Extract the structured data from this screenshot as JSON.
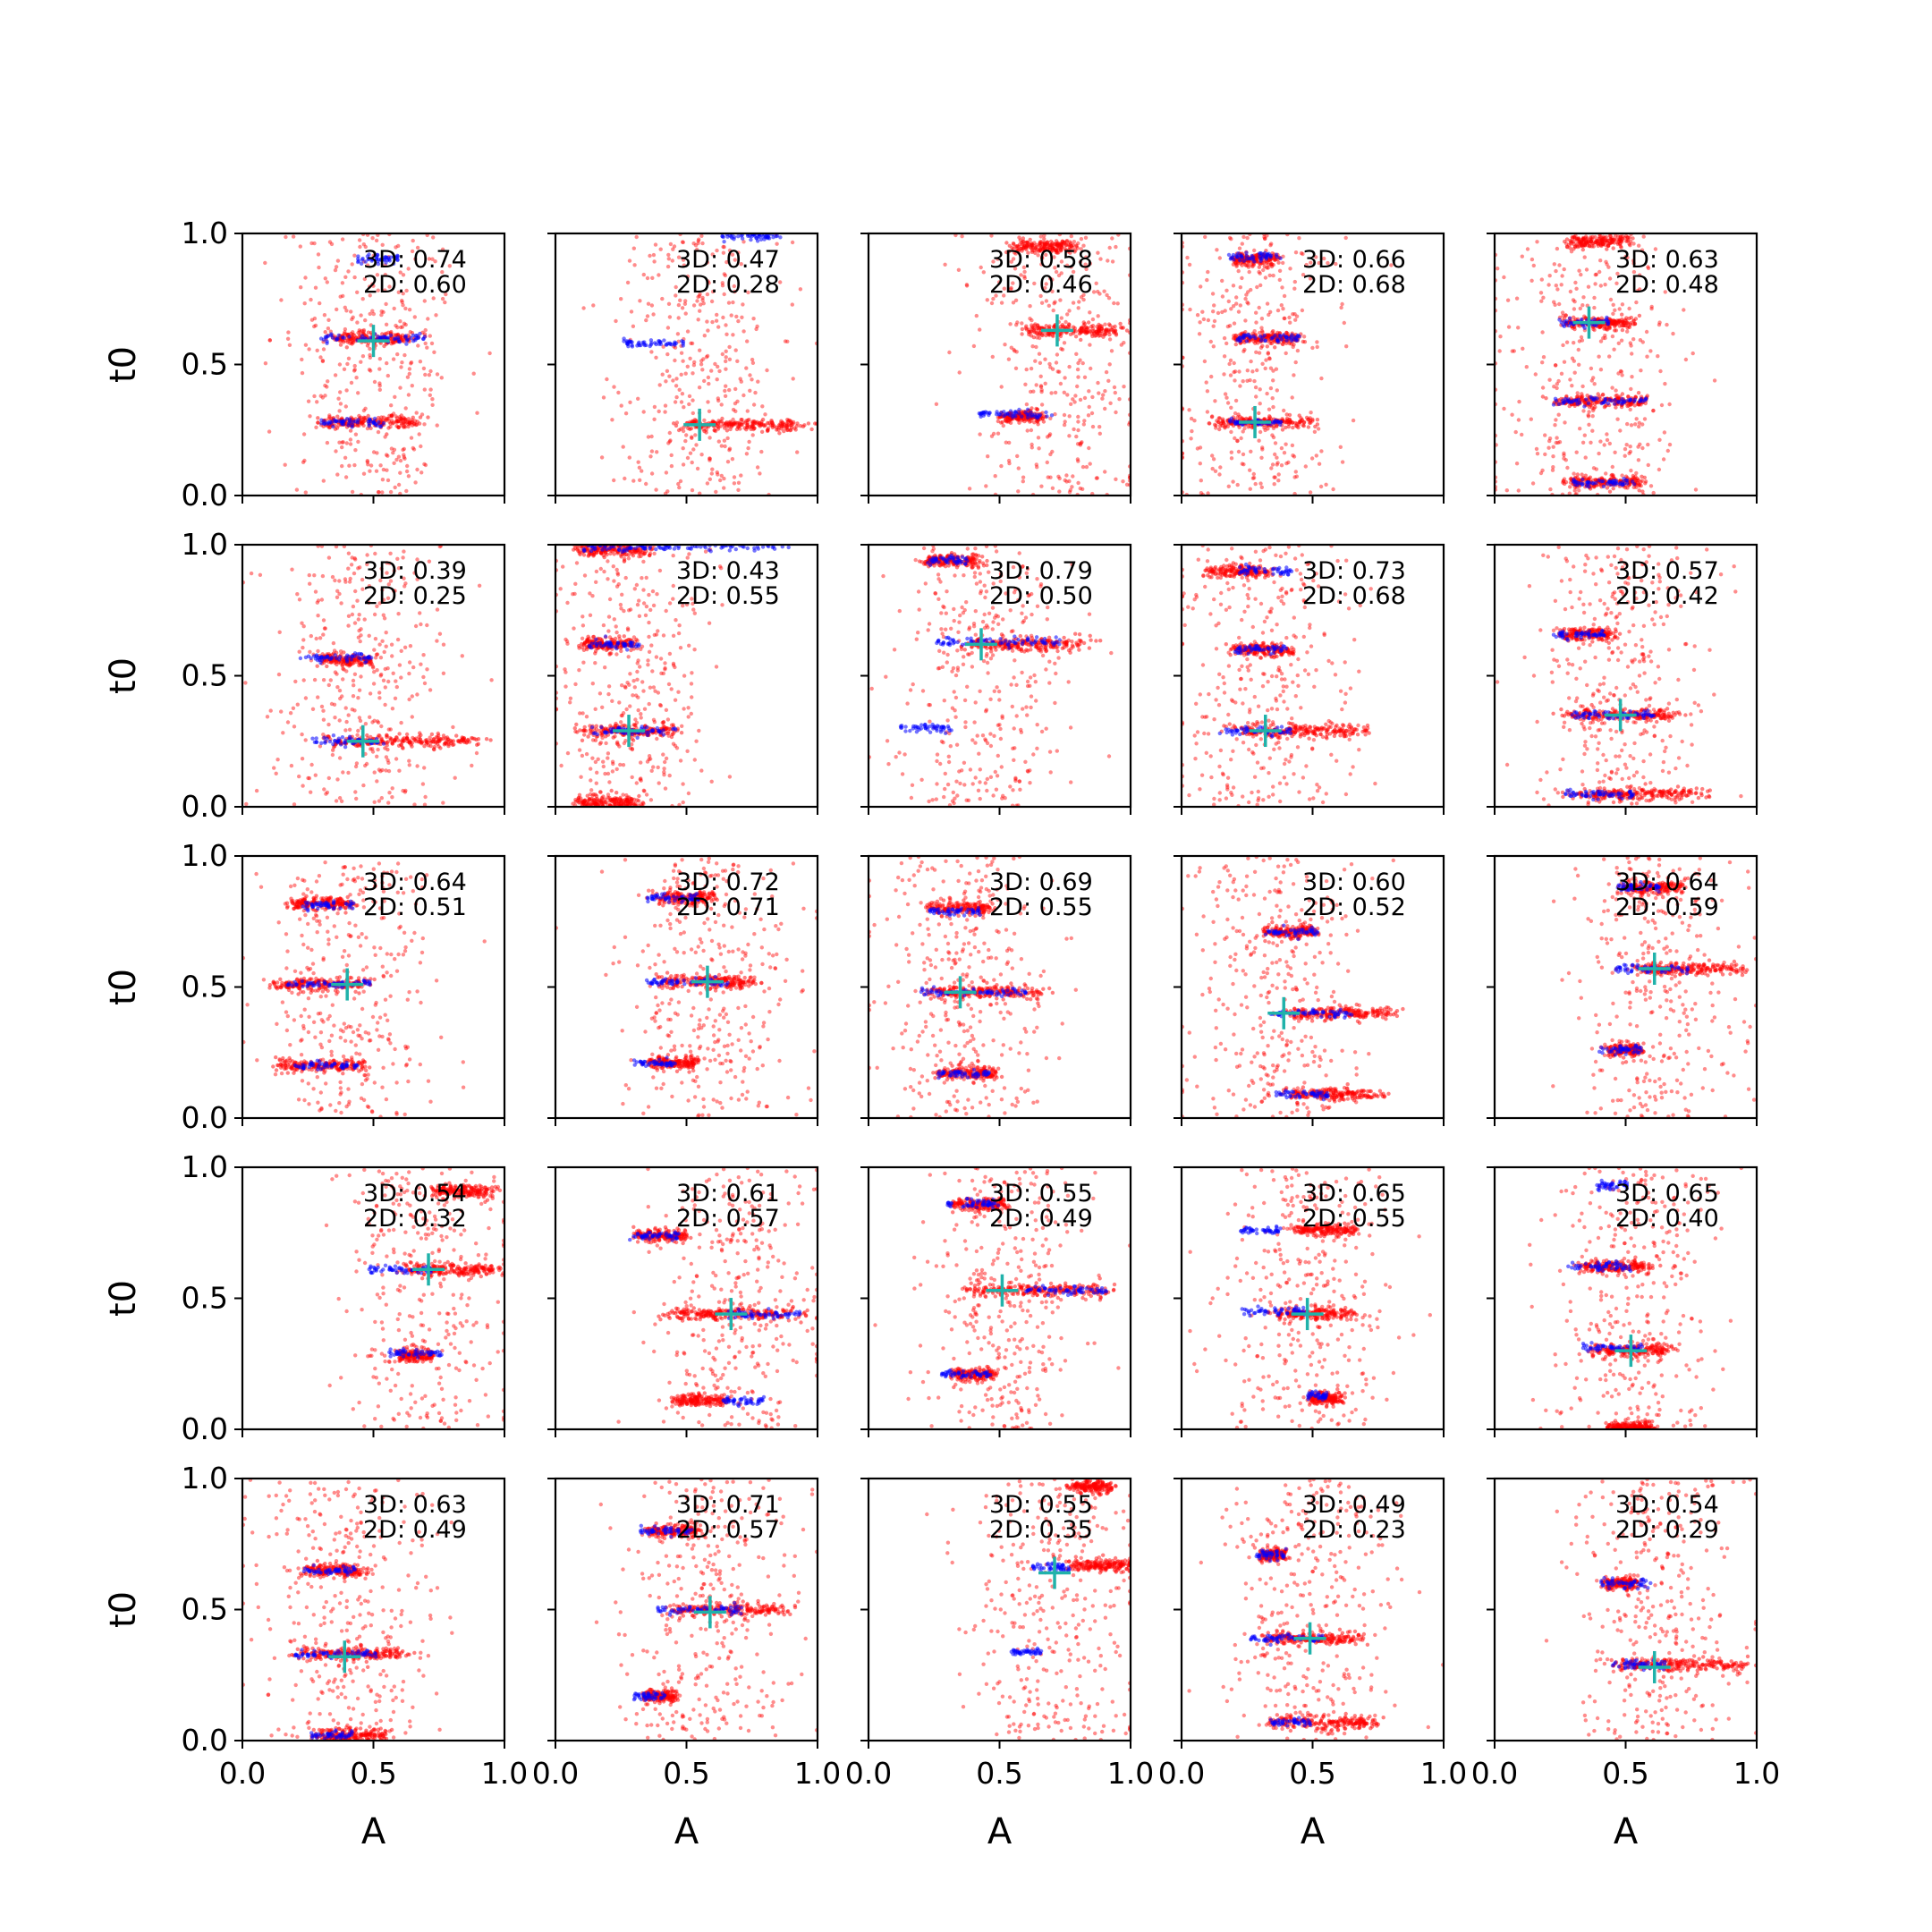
{
  "chart_data": {
    "type": "scatter",
    "grid": false,
    "layout": {
      "rows": 5,
      "cols": 5
    },
    "xlabel": "A",
    "ylabel": "t0",
    "xlim": [
      0,
      1
    ],
    "ylim": [
      0,
      1
    ],
    "xticks": [
      "0.0",
      "0.5",
      "1.0"
    ],
    "yticks": [
      "0.0",
      "0.5",
      "1.0"
    ],
    "colors": {
      "red_points": "#ff0000",
      "blue_points": "#0000ff",
      "marker": "#20b2aa",
      "axes": "#000000"
    },
    "panels": [
      {
        "label3d": "3D: 0.74",
        "label2d": "2D: 0.60",
        "marker": [
          0.5,
          0.59
        ],
        "bands": [
          [
            0.6,
            0.5,
            0.2
          ],
          [
            0.28,
            0.5,
            0.22
          ]
        ],
        "blue": [
          [
            0.9,
            0.52,
            0.08
          ],
          [
            0.6,
            0.5,
            0.2
          ],
          [
            0.28,
            0.42,
            0.12
          ]
        ]
      },
      {
        "label3d": "3D: 0.47",
        "label2d": "2D: 0.28",
        "marker": [
          0.55,
          0.27
        ],
        "bands": [
          [
            0.27,
            0.72,
            0.3
          ]
        ],
        "blue": [
          [
            0.58,
            0.38,
            0.12
          ],
          [
            0.99,
            0.75,
            0.12
          ]
        ]
      },
      {
        "label3d": "3D: 0.58",
        "label2d": "2D: 0.46",
        "marker": [
          0.72,
          0.63
        ],
        "bands": [
          [
            0.63,
            0.78,
            0.22
          ],
          [
            0.95,
            0.66,
            0.14
          ],
          [
            0.3,
            0.58,
            0.1
          ]
        ],
        "blue": [
          [
            0.31,
            0.56,
            0.14
          ]
        ]
      },
      {
        "label3d": "3D: 0.66",
        "label2d": "2D: 0.68",
        "marker": [
          0.28,
          0.28
        ],
        "bands": [
          [
            0.28,
            0.32,
            0.22
          ],
          [
            0.6,
            0.33,
            0.15
          ],
          [
            0.9,
            0.28,
            0.1
          ]
        ],
        "blue": [
          [
            0.91,
            0.28,
            0.1
          ],
          [
            0.6,
            0.33,
            0.12
          ],
          [
            0.28,
            0.28,
            0.1
          ]
        ]
      },
      {
        "label3d": "3D: 0.63",
        "label2d": "2D: 0.48",
        "marker": [
          0.36,
          0.66
        ],
        "bands": [
          [
            0.66,
            0.4,
            0.16
          ],
          [
            0.36,
            0.4,
            0.22
          ],
          [
            0.05,
            0.42,
            0.18
          ],
          [
            0.97,
            0.4,
            0.14
          ]
        ],
        "blue": [
          [
            0.36,
            0.4,
            0.18
          ],
          [
            0.05,
            0.42,
            0.12
          ],
          [
            0.66,
            0.34,
            0.1
          ]
        ]
      },
      {
        "label3d": "3D: 0.39",
        "label2d": "2D: 0.25",
        "marker": [
          0.46,
          0.25
        ],
        "bands": [
          [
            0.25,
            0.62,
            0.34
          ],
          [
            0.56,
            0.4,
            0.12
          ]
        ],
        "blue": [
          [
            0.57,
            0.36,
            0.14
          ],
          [
            0.25,
            0.4,
            0.14
          ]
        ]
      },
      {
        "label3d": "3D: 0.43",
        "label2d": "2D: 0.55",
        "marker": [
          0.28,
          0.29
        ],
        "bands": [
          [
            0.29,
            0.28,
            0.22
          ],
          [
            0.62,
            0.2,
            0.12
          ],
          [
            0.98,
            0.22,
            0.16
          ],
          [
            0.02,
            0.2,
            0.14
          ]
        ],
        "blue": [
          [
            0.29,
            0.3,
            0.16
          ],
          [
            0.99,
            0.5,
            0.4
          ],
          [
            0.62,
            0.22,
            0.1
          ]
        ]
      },
      {
        "label3d": "3D: 0.79",
        "label2d": "2D: 0.50",
        "marker": [
          0.43,
          0.62
        ],
        "bands": [
          [
            0.62,
            0.62,
            0.28
          ],
          [
            0.94,
            0.32,
            0.14
          ]
        ],
        "blue": [
          [
            0.63,
            0.5,
            0.24
          ],
          [
            0.3,
            0.22,
            0.1
          ],
          [
            0.94,
            0.3,
            0.08
          ]
        ]
      },
      {
        "label3d": "3D: 0.73",
        "label2d": "2D: 0.68",
        "marker": [
          0.32,
          0.29
        ],
        "bands": [
          [
            0.29,
            0.45,
            0.3
          ],
          [
            0.6,
            0.3,
            0.14
          ],
          [
            0.9,
            0.22,
            0.14
          ]
        ],
        "blue": [
          [
            0.9,
            0.32,
            0.1
          ],
          [
            0.6,
            0.3,
            0.1
          ],
          [
            0.29,
            0.28,
            0.14
          ]
        ]
      },
      {
        "label3d": "3D: 0.57",
        "label2d": "2D: 0.42",
        "marker": [
          0.48,
          0.35
        ],
        "bands": [
          [
            0.35,
            0.48,
            0.26
          ],
          [
            0.05,
            0.55,
            0.3
          ],
          [
            0.66,
            0.36,
            0.12
          ]
        ],
        "blue": [
          [
            0.66,
            0.32,
            0.1
          ],
          [
            0.35,
            0.45,
            0.16
          ],
          [
            0.05,
            0.4,
            0.14
          ]
        ]
      },
      {
        "label3d": "3D: 0.64",
        "label2d": "2D: 0.51",
        "marker": [
          0.4,
          0.51
        ],
        "bands": [
          [
            0.51,
            0.3,
            0.22
          ],
          [
            0.2,
            0.3,
            0.2
          ],
          [
            0.82,
            0.3,
            0.14
          ]
        ],
        "blue": [
          [
            0.51,
            0.33,
            0.16
          ],
          [
            0.81,
            0.33,
            0.1
          ],
          [
            0.2,
            0.32,
            0.12
          ]
        ]
      },
      {
        "label3d": "3D: 0.72",
        "label2d": "2D: 0.71",
        "marker": [
          0.58,
          0.52
        ],
        "bands": [
          [
            0.52,
            0.58,
            0.22
          ],
          [
            0.84,
            0.5,
            0.14
          ],
          [
            0.21,
            0.45,
            0.12
          ]
        ],
        "blue": [
          [
            0.84,
            0.45,
            0.1
          ],
          [
            0.52,
            0.5,
            0.16
          ],
          [
            0.21,
            0.38,
            0.08
          ]
        ]
      },
      {
        "label3d": "3D: 0.69",
        "label2d": "2D: 0.55",
        "marker": [
          0.35,
          0.48
        ],
        "bands": [
          [
            0.48,
            0.45,
            0.26
          ],
          [
            0.8,
            0.35,
            0.14
          ],
          [
            0.17,
            0.38,
            0.14
          ]
        ],
        "blue": [
          [
            0.79,
            0.33,
            0.1
          ],
          [
            0.48,
            0.4,
            0.2
          ],
          [
            0.17,
            0.36,
            0.1
          ]
        ]
      },
      {
        "label3d": "3D: 0.60",
        "label2d": "2D: 0.52",
        "marker": [
          0.39,
          0.4
        ],
        "bands": [
          [
            0.4,
            0.62,
            0.24
          ],
          [
            0.09,
            0.58,
            0.22
          ],
          [
            0.71,
            0.42,
            0.12
          ]
        ],
        "blue": [
          [
            0.71,
            0.42,
            0.1
          ],
          [
            0.4,
            0.5,
            0.16
          ],
          [
            0.09,
            0.46,
            0.1
          ]
        ]
      },
      {
        "label3d": "3D: 0.64",
        "label2d": "2D: 0.59",
        "marker": [
          0.61,
          0.57
        ],
        "bands": [
          [
            0.57,
            0.74,
            0.24
          ],
          [
            0.88,
            0.6,
            0.14
          ],
          [
            0.26,
            0.5,
            0.08
          ]
        ],
        "blue": [
          [
            0.88,
            0.55,
            0.08
          ],
          [
            0.57,
            0.6,
            0.14
          ],
          [
            0.26,
            0.48,
            0.08
          ]
        ]
      },
      {
        "label3d": "3D: 0.54",
        "label2d": "2D: 0.32",
        "marker": [
          0.71,
          0.61
        ],
        "bands": [
          [
            0.61,
            0.8,
            0.22
          ],
          [
            0.91,
            0.85,
            0.14
          ],
          [
            0.28,
            0.66,
            0.08
          ]
        ],
        "blue": [
          [
            0.61,
            0.6,
            0.12
          ],
          [
            0.29,
            0.66,
            0.1
          ]
        ]
      },
      {
        "label3d": "3D: 0.61",
        "label2d": "2D: 0.57",
        "marker": [
          0.67,
          0.44
        ],
        "bands": [
          [
            0.44,
            0.68,
            0.3
          ],
          [
            0.74,
            0.4,
            0.12
          ],
          [
            0.11,
            0.55,
            0.12
          ]
        ],
        "blue": [
          [
            0.74,
            0.38,
            0.1
          ],
          [
            0.44,
            0.8,
            0.14
          ],
          [
            0.11,
            0.72,
            0.08
          ]
        ]
      },
      {
        "label3d": "3D: 0.55",
        "label2d": "2D: 0.49",
        "marker": [
          0.51,
          0.53
        ],
        "bands": [
          [
            0.53,
            0.65,
            0.32
          ],
          [
            0.86,
            0.42,
            0.12
          ],
          [
            0.21,
            0.4,
            0.1
          ]
        ],
        "blue": [
          [
            0.86,
            0.4,
            0.1
          ],
          [
            0.53,
            0.75,
            0.16
          ],
          [
            0.21,
            0.38,
            0.1
          ]
        ]
      },
      {
        "label3d": "3D: 0.65",
        "label2d": "2D: 0.55",
        "marker": [
          0.48,
          0.44
        ],
        "bands": [
          [
            0.76,
            0.55,
            0.14
          ],
          [
            0.44,
            0.5,
            0.18
          ],
          [
            0.12,
            0.55,
            0.08
          ]
        ],
        "blue": [
          [
            0.76,
            0.3,
            0.08
          ],
          [
            0.45,
            0.35,
            0.12
          ],
          [
            0.13,
            0.52,
            0.04
          ]
        ]
      },
      {
        "label3d": "3D: 0.65",
        "label2d": "2D: 0.40",
        "marker": [
          0.52,
          0.3
        ],
        "bands": [
          [
            0.62,
            0.47,
            0.18
          ],
          [
            0.3,
            0.52,
            0.18
          ],
          [
            0.01,
            0.52,
            0.1
          ]
        ],
        "blue": [
          [
            0.62,
            0.4,
            0.12
          ],
          [
            0.31,
            0.45,
            0.12
          ],
          [
            0.93,
            0.45,
            0.06
          ]
        ]
      },
      {
        "label3d": "3D: 0.63",
        "label2d": "2D: 0.49",
        "marker": [
          0.39,
          0.32
        ],
        "bands": [
          [
            0.33,
            0.42,
            0.24
          ],
          [
            0.65,
            0.35,
            0.14
          ],
          [
            0.02,
            0.42,
            0.16
          ]
        ],
        "blue": [
          [
            0.33,
            0.35,
            0.16
          ],
          [
            0.65,
            0.33,
            0.1
          ],
          [
            0.02,
            0.34,
            0.08
          ]
        ]
      },
      {
        "label3d": "3D: 0.71",
        "label2d": "2D: 0.57",
        "marker": [
          0.59,
          0.49
        ],
        "bands": [
          [
            0.5,
            0.66,
            0.26
          ],
          [
            0.8,
            0.45,
            0.12
          ],
          [
            0.17,
            0.4,
            0.08
          ]
        ],
        "blue": [
          [
            0.8,
            0.42,
            0.1
          ],
          [
            0.5,
            0.55,
            0.16
          ],
          [
            0.17,
            0.36,
            0.06
          ]
        ]
      },
      {
        "label3d": "3D: 0.55",
        "label2d": "2D: 0.35",
        "marker": [
          0.71,
          0.64
        ],
        "bands": [
          [
            0.67,
            0.88,
            0.14
          ],
          [
            0.97,
            0.85,
            0.1
          ]
        ],
        "blue": [
          [
            0.66,
            0.7,
            0.08
          ],
          [
            0.34,
            0.6,
            0.06
          ]
        ]
      },
      {
        "label3d": "3D: 0.49",
        "label2d": "2D: 0.23",
        "marker": [
          0.49,
          0.39
        ],
        "bands": [
          [
            0.39,
            0.5,
            0.22
          ],
          [
            0.07,
            0.55,
            0.24
          ],
          [
            0.71,
            0.35,
            0.06
          ]
        ],
        "blue": [
          [
            0.71,
            0.34,
            0.06
          ],
          [
            0.39,
            0.4,
            0.14
          ],
          [
            0.07,
            0.42,
            0.08
          ]
        ]
      },
      {
        "label3d": "3D: 0.54",
        "label2d": "2D: 0.29",
        "marker": [
          0.61,
          0.28
        ],
        "bands": [
          [
            0.29,
            0.72,
            0.3
          ],
          [
            0.6,
            0.48,
            0.08
          ]
        ],
        "blue": [
          [
            0.6,
            0.5,
            0.1
          ],
          [
            0.29,
            0.55,
            0.1
          ]
        ]
      }
    ]
  }
}
